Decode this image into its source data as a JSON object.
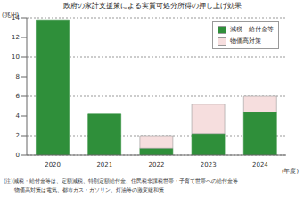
{
  "chart_data": {
    "type": "bar",
    "title": "政府の家計支援策による実質可処分所得の押し上げ効果",
    "ylabel": "(兆円)",
    "xlabel": "(年度)",
    "categories": [
      "2020",
      "2021",
      "2022",
      "2023",
      "2024"
    ],
    "series": [
      {
        "name": "減税・給付金等",
        "color": "#2f8f3a",
        "values": [
          13.8,
          4.2,
          0.7,
          2.2,
          4.4
        ]
      },
      {
        "name": "物価高対策",
        "color": "#f6dede",
        "values": [
          null,
          null,
          1.3,
          3.0,
          1.6
        ]
      }
    ],
    "stacked": true,
    "ylim": [
      0,
      14
    ],
    "yticks": [
      0,
      2,
      4,
      6,
      8,
      10,
      12,
      14
    ],
    "grid": true,
    "legend": "upper right",
    "annotations": [
      "(注)減税・給付金等は、定額減税、特別定額給付金、住民税非課税世帯・子育て世帯への給付金等",
      "物価高対策は電気、都市ガス・ガソリン、灯油等の激変緩和策"
    ]
  }
}
